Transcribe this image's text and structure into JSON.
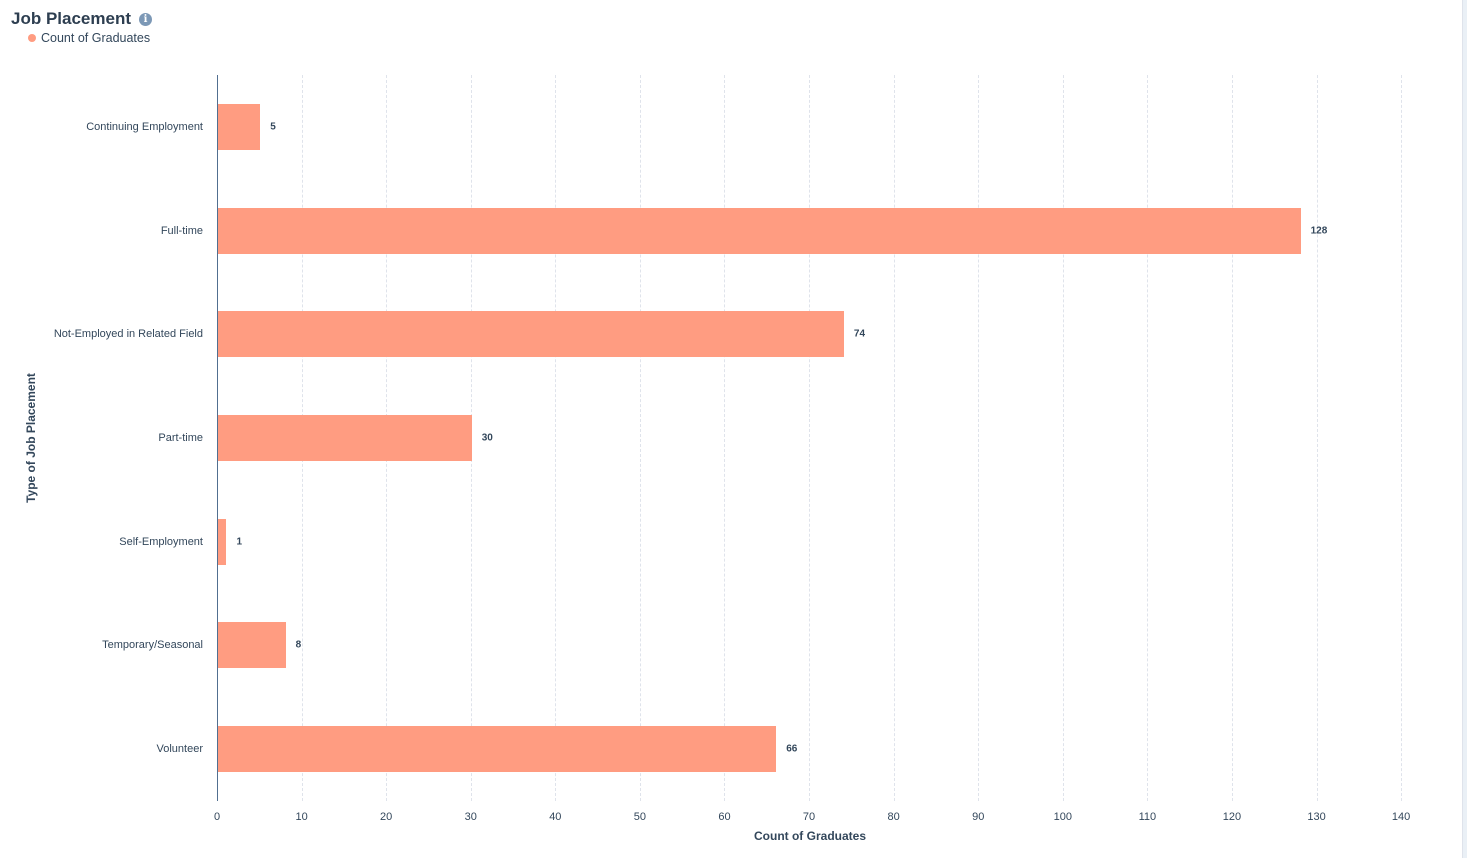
{
  "header": {
    "title": "Job Placement",
    "info_icon": "info-icon"
  },
  "legend": [
    {
      "label": "Count of Graduates",
      "color": "#ff9c81"
    }
  ],
  "chart_data": {
    "type": "bar",
    "orientation": "horizontal",
    "title": "Job Placement",
    "xlabel": "Count of Graduates",
    "ylabel": "Type of Job Placement",
    "categories": [
      "Continuing Employment",
      "Full-time",
      "Not-Employed in Related Field",
      "Part-time",
      "Self-Employment",
      "Temporary/Seasonal",
      "Volunteer"
    ],
    "values": [
      5,
      128,
      74,
      30,
      1,
      8,
      66
    ],
    "series": [
      {
        "name": "Count of Graduates",
        "color": "#ff9c81",
        "values": [
          5,
          128,
          74,
          30,
          1,
          8,
          66
        ]
      }
    ],
    "xlim": [
      0,
      140
    ],
    "xticks": [
      "0",
      "10",
      "20",
      "30",
      "40",
      "50",
      "60",
      "70",
      "80",
      "90",
      "100",
      "110",
      "120",
      "130",
      "140"
    ],
    "grid": true,
    "grid_style": "dashed vertical",
    "legend_position": "top-left",
    "data_labels": true
  }
}
